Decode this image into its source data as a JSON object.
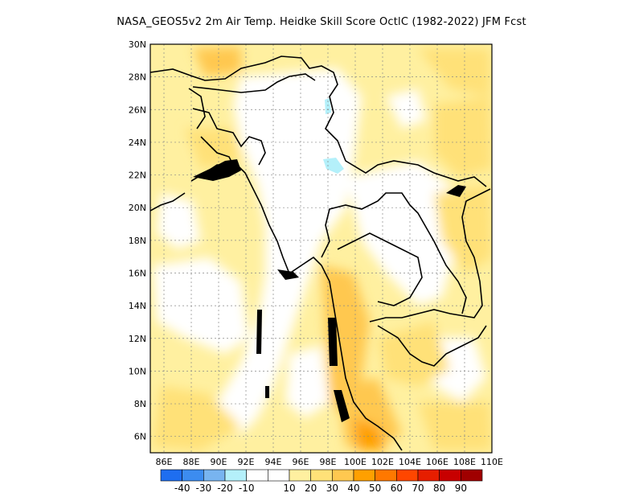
{
  "title": "NASA_GEOS5v2  2m Air Temp. Heidke Skill Score OctlC (1982-2022) JFM Fcst",
  "map": {
    "lon_range": [
      85,
      110
    ],
    "lat_range": [
      5,
      30
    ],
    "x_ticks": [
      "86E",
      "88E",
      "90E",
      "92E",
      "94E",
      "96E",
      "98E",
      "100E",
      "102E",
      "104E",
      "106E",
      "108E",
      "110E"
    ],
    "y_ticks": [
      "6N",
      "8N",
      "10N",
      "12N",
      "14N",
      "16N",
      "18N",
      "20N",
      "22N",
      "24N",
      "26N",
      "28N",
      "30N"
    ],
    "gridlines": "dotted"
  },
  "colorbar": {
    "colors": [
      "#1e6ef0",
      "#3c8cf0",
      "#78b4f0",
      "#b4f0fa",
      "#ffffff",
      "#ffffff",
      "#fff0a0",
      "#ffe178",
      "#ffc850",
      "#ffa000",
      "#ff7800",
      "#ff4600",
      "#e61e00",
      "#c80000",
      "#a00000"
    ],
    "labels": [
      "-40",
      "-30",
      "-20",
      "-10",
      "10",
      "20",
      "30",
      "40",
      "50",
      "60",
      "70",
      "80",
      "90"
    ]
  }
}
